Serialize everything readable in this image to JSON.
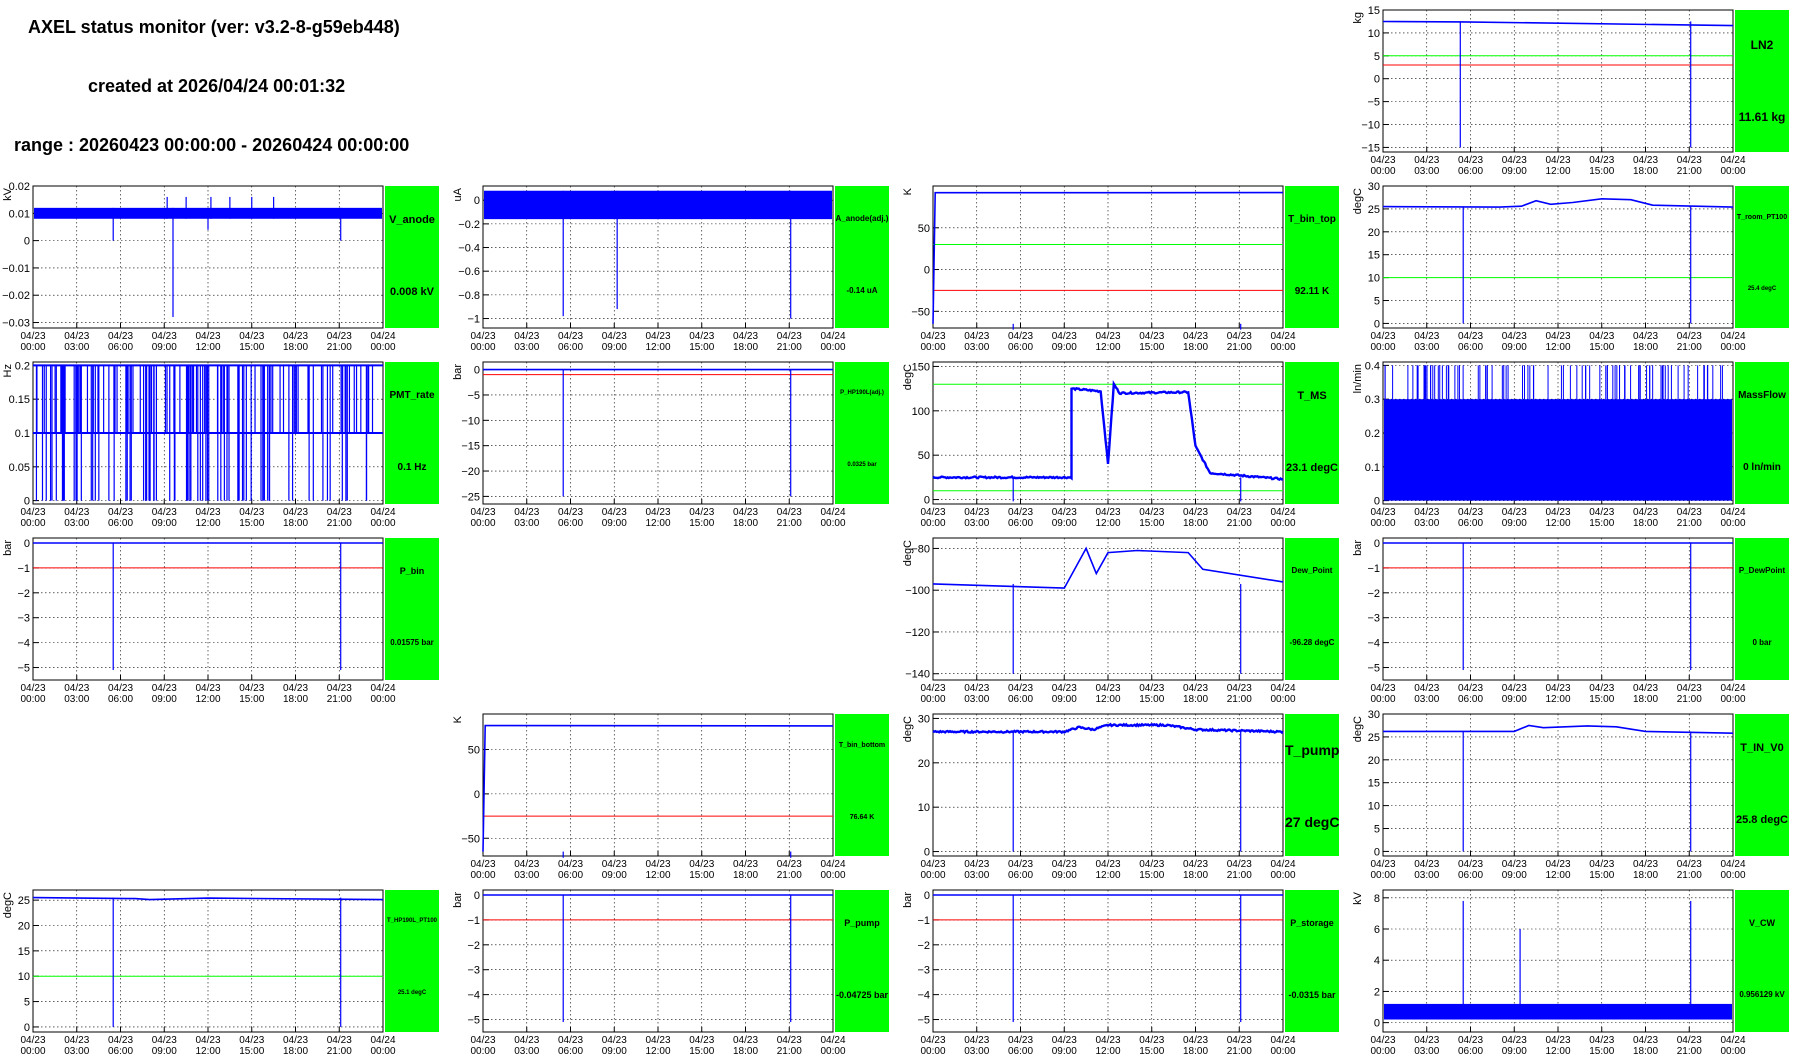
{
  "header": {
    "title": "AXEL status monitor (ver: v3.2-8-g59eb448)",
    "created": "created at 2026/04/24 00:01:32",
    "range": "range : 20260423 00:00:00 - 20260424 00:00:00"
  },
  "colors": {
    "trace": "#0000ff",
    "red_line": "#ff0000",
    "green_line": "#00ff00",
    "status_box": "#00ff00",
    "grid": "#000000"
  },
  "x_ticks": [
    {
      "d": "04/23",
      "t": "00:00"
    },
    {
      "d": "04/23",
      "t": "03:00"
    },
    {
      "d": "04/23",
      "t": "06:00"
    },
    {
      "d": "04/23",
      "t": "09:00"
    },
    {
      "d": "04/23",
      "t": "12:00"
    },
    {
      "d": "04/23",
      "t": "15:00"
    },
    {
      "d": "04/23",
      "t": "18:00"
    },
    {
      "d": "04/23",
      "t": "21:00"
    },
    {
      "d": "04/24",
      "t": "00:00"
    }
  ],
  "chart_data": [
    {
      "id": "LN2",
      "type": "line",
      "name": "LN2",
      "value": "11.61 kg",
      "ylabel": "kg",
      "ylim": [
        -16,
        15
      ],
      "yticks": [
        "15",
        "10",
        "5",
        "0",
        "−5",
        "−10",
        "−15"
      ],
      "ytick_vals": [
        15,
        10,
        5,
        0,
        -5,
        -10,
        -15
      ],
      "red": 3,
      "green": 5,
      "series": [
        [
          0,
          12.5
        ],
        [
          5.5,
          12.4
        ],
        [
          24,
          11.6
        ]
      ],
      "spikes": [
        [
          5.3,
          -15
        ],
        [
          21.1,
          -15
        ]
      ],
      "xlim_hours": [
        0,
        24
      ],
      "name_size": 12,
      "value_size": 12
    },
    {
      "id": "V_anode",
      "type": "line",
      "name": "V_anode",
      "value": "0.008 kV",
      "ylabel": "kV",
      "ylim": [
        -0.032,
        0.02
      ],
      "yticks": [
        "0.02",
        "0.01",
        "0",
        "−0.01",
        "−0.02",
        "−0.03"
      ],
      "ytick_vals": [
        0.02,
        0.01,
        0,
        -0.01,
        -0.02,
        -0.03
      ],
      "series": [],
      "band": [
        0.008,
        0.012
      ],
      "spikes": [
        [
          5.5,
          0
        ],
        [
          9.6,
          -0.028
        ],
        [
          12,
          0.004
        ],
        [
          21.1,
          0
        ]
      ],
      "spikes_up": [
        [
          9.2,
          0.016
        ],
        [
          10.5,
          0.016
        ],
        [
          12.2,
          0.016
        ],
        [
          13.5,
          0.016
        ],
        [
          15,
          0.016
        ],
        [
          16.5,
          0.016
        ]
      ],
      "name_size": 11,
      "value_size": 11
    },
    {
      "id": "A_anode",
      "type": "line",
      "name": "A_anode(adj.)",
      "value": "-0.14 uA",
      "ylabel": "uA",
      "ylim": [
        -1.08,
        0.12
      ],
      "yticks": [
        "0",
        "−0.2",
        "−0.4",
        "−0.6",
        "−0.8",
        "−1"
      ],
      "ytick_vals": [
        0,
        -0.2,
        -0.4,
        -0.6,
        -0.8,
        -1
      ],
      "series": [],
      "band": [
        -0.16,
        0.08
      ],
      "spikes": [
        [
          5.5,
          -0.98
        ],
        [
          9.2,
          -0.92
        ],
        [
          21.1,
          -1.0
        ]
      ],
      "name_size": 8,
      "value_size": 8
    },
    {
      "id": "T_bin_top",
      "type": "line",
      "name": "T_bin_top",
      "value": "92.11 K",
      "ylabel": "K",
      "ylim": [
        -70,
        100
      ],
      "yticks": [
        "50",
        "0",
        "−50"
      ],
      "ytick_vals": [
        50,
        0,
        -50
      ],
      "red": -25,
      "green": 30,
      "series": [
        [
          0,
          -65
        ],
        [
          0.15,
          92
        ],
        [
          24,
          92.1
        ]
      ],
      "spikes": [
        [
          5.5,
          -72
        ],
        [
          21.1,
          -72
        ]
      ],
      "name_size": 10,
      "value_size": 10
    },
    {
      "id": "T_room_PT100",
      "type": "line",
      "name": "T_room_PT100",
      "value": "25.4 degC",
      "ylabel": "degC",
      "ylim": [
        -1,
        30
      ],
      "yticks": [
        "30",
        "25",
        "20",
        "15",
        "10",
        "5",
        "0"
      ],
      "ytick_vals": [
        30,
        25,
        20,
        15,
        10,
        5,
        0
      ],
      "green": 10,
      "series": [
        [
          0,
          25.5
        ],
        [
          8,
          25.4
        ],
        [
          9.5,
          25.6
        ],
        [
          10.5,
          26.8
        ],
        [
          11.5,
          26
        ],
        [
          13,
          26.4
        ],
        [
          15,
          27.2
        ],
        [
          17,
          27
        ],
        [
          18.5,
          25.8
        ],
        [
          24,
          25.4
        ]
      ],
      "spikes": [
        [
          5.5,
          0
        ],
        [
          21.1,
          0
        ]
      ],
      "name_size": 7,
      "value_size": 6
    },
    {
      "id": "PMT_rate",
      "type": "bars",
      "name": "PMT_rate",
      "value": "0.1 Hz",
      "ylabel": "Hz",
      "ylim": [
        -0.005,
        0.205
      ],
      "yticks": [
        "0.2",
        "0.15",
        "0.1",
        "0.05",
        "0"
      ],
      "ytick_vals": [
        0.2,
        0.15,
        0.1,
        0.05,
        0
      ],
      "series": [],
      "band": [
        0.1,
        0.2
      ],
      "name_size": 10,
      "value_size": 10
    },
    {
      "id": "P_HP190L",
      "type": "line",
      "name": "P_HP190L(adj.)",
      "value": "0.0325 bar",
      "ylabel": "bar",
      "ylim": [
        -26.5,
        1.5
      ],
      "yticks": [
        "0",
        "−5",
        "−10",
        "−15",
        "−20",
        "−25"
      ],
      "ytick_vals": [
        0,
        -5,
        -10,
        -15,
        -20,
        -25
      ],
      "red": -1,
      "series": [
        [
          0,
          0
        ],
        [
          24,
          0
        ]
      ],
      "spikes": [
        [
          5.5,
          -25
        ],
        [
          21.1,
          -25
        ]
      ],
      "name_size": 6,
      "value_size": 6
    },
    {
      "id": "T_MS",
      "type": "line",
      "name": "T_MS",
      "value": "23.1 degC",
      "ylabel": "degC",
      "ylim": [
        -5,
        155
      ],
      "yticks": [
        "150",
        "100",
        "50",
        "0"
      ],
      "ytick_vals": [
        150,
        100,
        50,
        0
      ],
      "green": 130,
      "green2": 10,
      "series": [
        [
          0,
          25
        ],
        [
          9.5,
          25
        ],
        [
          9.5,
          125
        ],
        [
          11.5,
          122
        ],
        [
          12,
          40
        ],
        [
          12.4,
          130
        ],
        [
          12.8,
          120
        ],
        [
          17.5,
          121
        ],
        [
          18,
          60
        ],
        [
          19,
          30
        ],
        [
          24,
          23
        ]
      ],
      "noisy": true,
      "spikes": [
        [
          5.5,
          -2
        ],
        [
          21.1,
          -2
        ]
      ],
      "name_size": 11,
      "value_size": 11
    },
    {
      "id": "MassFlow",
      "type": "bars",
      "name": "MassFlow",
      "value": "0 ln/min",
      "ylabel": "ln/min",
      "ylim": [
        -0.01,
        0.41
      ],
      "yticks": [
        "0.4",
        "0.3",
        "0.2",
        "0.1",
        "0"
      ],
      "ytick_vals": [
        0.4,
        0.3,
        0.2,
        0.1,
        0
      ],
      "series": [],
      "band": [
        0,
        0.3
      ],
      "filled": true,
      "name_size": 10,
      "value_size": 10
    },
    {
      "id": "P_bin",
      "type": "line",
      "name": "P_bin",
      "value": "0.01575 bar",
      "ylabel": "bar",
      "ylim": [
        -5.5,
        0.2
      ],
      "yticks": [
        "0",
        "−1",
        "−2",
        "−3",
        "−4",
        "−5"
      ],
      "ytick_vals": [
        0,
        -1,
        -2,
        -3,
        -4,
        -5
      ],
      "red": -1,
      "series": [
        [
          0,
          0
        ],
        [
          24,
          0
        ]
      ],
      "spikes": [
        [
          5.5,
          -5.1
        ],
        [
          21.1,
          -5.1
        ]
      ],
      "name_size": 9,
      "value_size": 8
    },
    {
      "id": "Dew_Point",
      "type": "line",
      "name": "Dew_Point",
      "value": "-96.28 degC",
      "ylabel": "degC",
      "ylim": [
        -143,
        -75
      ],
      "yticks": [
        "−80",
        "−100",
        "−120",
        "−140"
      ],
      "ytick_vals": [
        -80,
        -100,
        -120,
        -140
      ],
      "series": [
        [
          0,
          -97
        ],
        [
          9,
          -99
        ],
        [
          10.5,
          -80
        ],
        [
          11.2,
          -92
        ],
        [
          12,
          -82
        ],
        [
          14,
          -81
        ],
        [
          17.5,
          -82
        ],
        [
          18.5,
          -90
        ],
        [
          24,
          -96
        ]
      ],
      "spikes": [
        [
          5.5,
          -140
        ],
        [
          21.1,
          -140
        ]
      ],
      "name_size": 8,
      "value_size": 8
    },
    {
      "id": "P_DewPoint",
      "type": "line",
      "name": "P_DewPoint",
      "value": "0 bar",
      "ylabel": "bar",
      "ylim": [
        -5.5,
        0.2
      ],
      "yticks": [
        "0",
        "−1",
        "−2",
        "−3",
        "−4",
        "−5"
      ],
      "ytick_vals": [
        0,
        -1,
        -2,
        -3,
        -4,
        -5
      ],
      "red": -1,
      "series": [
        [
          0,
          0
        ],
        [
          24,
          0
        ]
      ],
      "spikes": [
        [
          5.5,
          -5.1
        ],
        [
          21.1,
          -5.1
        ]
      ],
      "name_size": 8,
      "value_size": 8
    },
    {
      "id": "T_bin_bottom",
      "type": "line",
      "name": "T_bin_bottom",
      "value": "76.64 K",
      "ylabel": "K",
      "ylim": [
        -70,
        90
      ],
      "yticks": [
        "50",
        "0",
        "−50"
      ],
      "ytick_vals": [
        50,
        0,
        -50
      ],
      "red": -25,
      "series": [
        [
          0,
          -65
        ],
        [
          0.15,
          77
        ],
        [
          24,
          76.6
        ]
      ],
      "spikes": [
        [
          5.5,
          -72
        ],
        [
          21.1,
          -72
        ]
      ],
      "name_size": 7,
      "value_size": 7
    },
    {
      "id": "T_pump",
      "type": "line",
      "name": "T_pump",
      "value": "27 degC",
      "ylabel": "degC",
      "ylim": [
        -1,
        31
      ],
      "yticks": [
        "30",
        "20",
        "10",
        "0"
      ],
      "ytick_vals": [
        30,
        20,
        10,
        0
      ],
      "series": [
        [
          0,
          27
        ],
        [
          9,
          27
        ],
        [
          10,
          28
        ],
        [
          11,
          27.5
        ],
        [
          12,
          28.5
        ],
        [
          16,
          28.5
        ],
        [
          18,
          27.5
        ],
        [
          24,
          27
        ]
      ],
      "noisy": true,
      "spikes": [
        [
          5.5,
          0
        ],
        [
          21.1,
          0
        ]
      ],
      "name_size": 14,
      "value_size": 14
    },
    {
      "id": "T_IN_V0",
      "type": "line",
      "name": "T_IN_V0",
      "value": "25.8 degC",
      "ylabel": "degC",
      "ylim": [
        -1,
        30
      ],
      "yticks": [
        "30",
        "25",
        "20",
        "15",
        "10",
        "5",
        "0"
      ],
      "ytick_vals": [
        30,
        25,
        20,
        15,
        10,
        5,
        0
      ],
      "series": [
        [
          0,
          26.2
        ],
        [
          9,
          26.2
        ],
        [
          10,
          27.5
        ],
        [
          11,
          27
        ],
        [
          14,
          27.4
        ],
        [
          16,
          27.2
        ],
        [
          18,
          26.2
        ],
        [
          24,
          25.8
        ]
      ],
      "spikes": [
        [
          5.5,
          0
        ],
        [
          21.1,
          0
        ]
      ],
      "name_size": 11,
      "value_size": 11
    },
    {
      "id": "T_HP190L_PT100",
      "type": "line",
      "name": "T_HP190L_PT100",
      "value": "25.1 degC",
      "ylabel": "degC",
      "ylim": [
        -1,
        27
      ],
      "yticks": [
        "25",
        "20",
        "15",
        "10",
        "5",
        "0"
      ],
      "ytick_vals": [
        25,
        20,
        15,
        10,
        5,
        0
      ],
      "green": 10,
      "series": [
        [
          0,
          25.5
        ],
        [
          7,
          25.3
        ],
        [
          8,
          25.1
        ],
        [
          12,
          25.4
        ],
        [
          24,
          25.1
        ]
      ],
      "spikes": [
        [
          5.5,
          0
        ],
        [
          21.1,
          0
        ]
      ],
      "name_size": 6,
      "value_size": 6
    },
    {
      "id": "P_pump",
      "type": "line",
      "name": "P_pump",
      "value": "-0.04725 bar",
      "ylabel": "bar",
      "ylim": [
        -5.5,
        0.2
      ],
      "yticks": [
        "0",
        "−1",
        "−2",
        "−3",
        "−4",
        "−5"
      ],
      "ytick_vals": [
        0,
        -1,
        -2,
        -3,
        -4,
        -5
      ],
      "red": -1,
      "series": [
        [
          0,
          0
        ],
        [
          24,
          0
        ]
      ],
      "spikes": [
        [
          5.5,
          -5.1
        ],
        [
          21.1,
          -5.1
        ]
      ],
      "name_size": 9,
      "value_size": 9
    },
    {
      "id": "P_storage",
      "type": "line",
      "name": "P_storage",
      "value": "-0.0315 bar",
      "ylabel": "bar",
      "ylim": [
        -5.5,
        0.2
      ],
      "yticks": [
        "0",
        "−1",
        "−2",
        "−3",
        "−4",
        "−5"
      ],
      "ytick_vals": [
        0,
        -1,
        -2,
        -3,
        -4,
        -5
      ],
      "red": -1,
      "series": [
        [
          0,
          0
        ],
        [
          24,
          0
        ]
      ],
      "spikes": [
        [
          5.5,
          -5.1
        ],
        [
          21.1,
          -5.1
        ]
      ],
      "name_size": 9,
      "value_size": 9
    },
    {
      "id": "V_CW",
      "type": "line",
      "name": "V_CW",
      "value": "0.956129 kV",
      "ylabel": "kV",
      "ylim": [
        -0.6,
        8.5
      ],
      "yticks": [
        "8",
        "6",
        "4",
        "2",
        "0"
      ],
      "ytick_vals": [
        8,
        6,
        4,
        2,
        0
      ],
      "series": [],
      "band": [
        0.2,
        1.2
      ],
      "spikes_up": [
        [
          5.5,
          7.8
        ],
        [
          9.4,
          6
        ],
        [
          21.1,
          7.8
        ]
      ],
      "name_size": 9,
      "value_size": 8
    }
  ]
}
